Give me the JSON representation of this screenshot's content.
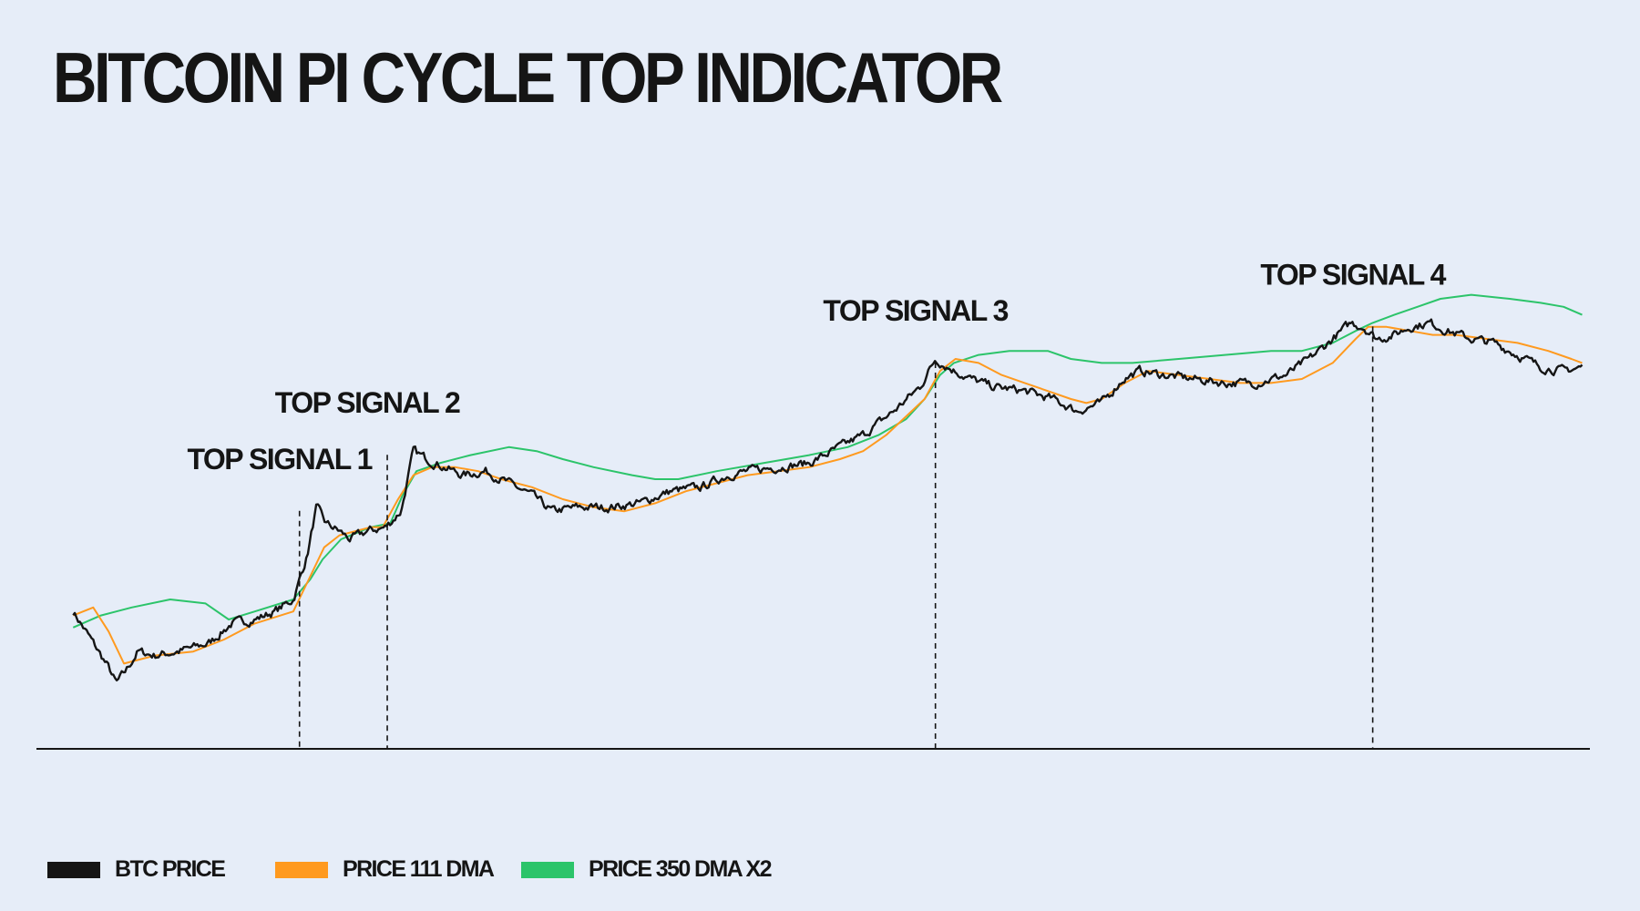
{
  "page": {
    "title": "BITCOIN PI CYCLE TOP INDICATOR"
  },
  "colors": {
    "background": "#e6edf8",
    "btc_price": "#151515",
    "dma_111": "#ff9a1f",
    "dma_350x2": "#2cc46a"
  },
  "legend": {
    "items": [
      {
        "label": "BTC PRICE",
        "color": "#151515"
      },
      {
        "label": "PRICE 111 DMA",
        "color": "#ff9a1f"
      },
      {
        "label": "PRICE 350 DMA X2",
        "color": "#2cc46a"
      }
    ]
  },
  "chart_data": {
    "type": "line",
    "title": "BITCOIN PI CYCLE TOP INDICATOR",
    "xlabel": "",
    "ylabel": "",
    "scale": "relative (log-like), no axis ticks shown",
    "x_range": [
      0,
      100
    ],
    "y_range": [
      0,
      100
    ],
    "grid": false,
    "legend_position": "bottom-left",
    "series": [
      {
        "name": "BTC PRICE",
        "color": "#151515",
        "points": [
          [
            1.2,
            27
          ],
          [
            2.2,
            21
          ],
          [
            3.5,
            13
          ],
          [
            4.0,
            9
          ],
          [
            4.6,
            12
          ],
          [
            5.4,
            17
          ],
          [
            6.5,
            16
          ],
          [
            8,
            17
          ],
          [
            10,
            19
          ],
          [
            11.5,
            24
          ],
          [
            13,
            25
          ],
          [
            14.3,
            27
          ],
          [
            15.5,
            30
          ],
          [
            16.4,
            41
          ],
          [
            17.0,
            53
          ],
          [
            17.6,
            49
          ],
          [
            18.5,
            47
          ],
          [
            19.2,
            45
          ],
          [
            20.3,
            47
          ],
          [
            21.5,
            48
          ],
          [
            22.5,
            52
          ],
          [
            23.3,
            67
          ],
          [
            24.2,
            65
          ],
          [
            25.3,
            63
          ],
          [
            26.5,
            61
          ],
          [
            28,
            62
          ],
          [
            29.5,
            59
          ],
          [
            31,
            56
          ],
          [
            32.3,
            52
          ],
          [
            34,
            53
          ],
          [
            36,
            53
          ],
          [
            38,
            54
          ],
          [
            40,
            57
          ],
          [
            42,
            58
          ],
          [
            43.7,
            61
          ],
          [
            45,
            62
          ],
          [
            47,
            63
          ],
          [
            49,
            64
          ],
          [
            51,
            68
          ],
          [
            52.5,
            71
          ],
          [
            54.5,
            77
          ],
          [
            56.2,
            83
          ],
          [
            57.2,
            90
          ],
          [
            58,
            88
          ],
          [
            59.5,
            85
          ],
          [
            61,
            83
          ],
          [
            63,
            82
          ],
          [
            64.8,
            80
          ],
          [
            66.4,
            77
          ],
          [
            68,
            79
          ],
          [
            69.4,
            85
          ],
          [
            70.5,
            87
          ],
          [
            72,
            86
          ],
          [
            74,
            85
          ],
          [
            76,
            84
          ],
          [
            78,
            84
          ],
          [
            80,
            86
          ],
          [
            81.5,
            90
          ],
          [
            83,
            95
          ],
          [
            84.2,
            99
          ],
          [
            85,
            98
          ],
          [
            85.9,
            95
          ],
          [
            87,
            96
          ],
          [
            88,
            98
          ],
          [
            89.3,
            99
          ],
          [
            90.5,
            97
          ],
          [
            92,
            95
          ],
          [
            93.5,
            94
          ],
          [
            95,
            91
          ],
          [
            96.5,
            88
          ],
          [
            98,
            87
          ],
          [
            99.2,
            88
          ]
        ]
      },
      {
        "name": "PRICE 111 DMA",
        "color": "#ff9a1f",
        "points": [
          [
            1.2,
            26
          ],
          [
            2.5,
            28
          ],
          [
            3.5,
            22
          ],
          [
            4.5,
            14
          ],
          [
            6.5,
            16
          ],
          [
            9,
            17
          ],
          [
            11,
            20
          ],
          [
            13,
            24
          ],
          [
            15.5,
            27
          ],
          [
            16.5,
            35
          ],
          [
            17.5,
            43
          ],
          [
            18.5,
            46
          ],
          [
            20.5,
            48
          ],
          [
            21.3,
            48
          ],
          [
            22.3,
            55
          ],
          [
            23.3,
            61
          ],
          [
            24.5,
            63
          ],
          [
            26,
            63
          ],
          [
            27.5,
            62
          ],
          [
            29,
            60
          ],
          [
            31,
            58
          ],
          [
            33,
            55
          ],
          [
            35,
            53
          ],
          [
            37,
            52
          ],
          [
            39,
            54
          ],
          [
            41,
            57
          ],
          [
            43,
            59
          ],
          [
            45,
            61
          ],
          [
            47,
            62
          ],
          [
            49,
            63
          ],
          [
            51,
            65
          ],
          [
            52.5,
            67
          ],
          [
            54,
            71
          ],
          [
            56.5,
            80
          ],
          [
            57.5,
            87
          ],
          [
            58.5,
            90
          ],
          [
            60,
            89
          ],
          [
            61.5,
            86
          ],
          [
            63,
            84
          ],
          [
            64.5,
            82
          ],
          [
            66,
            80
          ],
          [
            67,
            79
          ],
          [
            68,
            80
          ],
          [
            69.5,
            84
          ],
          [
            71,
            87
          ],
          [
            73,
            86
          ],
          [
            75,
            85
          ],
          [
            77,
            84
          ],
          [
            79,
            84
          ],
          [
            81,
            85
          ],
          [
            83,
            89
          ],
          [
            84.5,
            95
          ],
          [
            85.3,
            98
          ],
          [
            86.5,
            98
          ],
          [
            88,
            97
          ],
          [
            89.5,
            96
          ],
          [
            91,
            96
          ],
          [
            93,
            95
          ],
          [
            95,
            94
          ],
          [
            97,
            92
          ],
          [
            98.5,
            90
          ],
          [
            99.2,
            89
          ]
        ]
      },
      {
        "name": "PRICE 350 DMA X2",
        "color": "#2cc46a",
        "points": [
          [
            1.2,
            23
          ],
          [
            3,
            26
          ],
          [
            5,
            28
          ],
          [
            7.5,
            30
          ],
          [
            9.8,
            29
          ],
          [
            11.3,
            25
          ],
          [
            13,
            27
          ],
          [
            15.5,
            30
          ],
          [
            16.6,
            35
          ],
          [
            17.4,
            40
          ],
          [
            18.6,
            45
          ],
          [
            20.5,
            48
          ],
          [
            21.8,
            49
          ],
          [
            22.6,
            56
          ],
          [
            23.5,
            62
          ],
          [
            25,
            64
          ],
          [
            27,
            66
          ],
          [
            29.5,
            68
          ],
          [
            31.3,
            67
          ],
          [
            33,
            65
          ],
          [
            35,
            63
          ],
          [
            37.5,
            61
          ],
          [
            39,
            60
          ],
          [
            40.5,
            60
          ],
          [
            43,
            62
          ],
          [
            46,
            64
          ],
          [
            49,
            66
          ],
          [
            51.5,
            68
          ],
          [
            53.5,
            71
          ],
          [
            55.3,
            75
          ],
          [
            56.5,
            80
          ],
          [
            57.5,
            86
          ],
          [
            58.4,
            89
          ],
          [
            60,
            91
          ],
          [
            62,
            92
          ],
          [
            64.5,
            92
          ],
          [
            66,
            90
          ],
          [
            68,
            89
          ],
          [
            70,
            89
          ],
          [
            73,
            90
          ],
          [
            76,
            91
          ],
          [
            79,
            92
          ],
          [
            81,
            92
          ],
          [
            83,
            94
          ],
          [
            84.5,
            97
          ],
          [
            85.6,
            99
          ],
          [
            87,
            101
          ],
          [
            88.5,
            103
          ],
          [
            90,
            105
          ],
          [
            92,
            106
          ],
          [
            94.5,
            105
          ],
          [
            96.5,
            104
          ],
          [
            98,
            103
          ],
          [
            99.2,
            101
          ]
        ]
      }
    ],
    "annotations": [
      {
        "label": "TOP SIGNAL 1",
        "x": 15.9,
        "price_level": 53
      },
      {
        "label": "TOP SIGNAL 2",
        "x": 21.6,
        "price_level": 67
      },
      {
        "label": "TOP SIGNAL 3",
        "x": 57.2,
        "price_level": 90
      },
      {
        "label": "TOP SIGNAL 4",
        "x": 85.6,
        "price_level": 99
      }
    ]
  }
}
